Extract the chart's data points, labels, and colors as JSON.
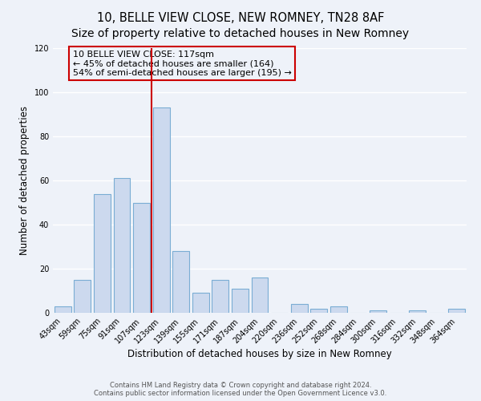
{
  "title": "10, BELLE VIEW CLOSE, NEW ROMNEY, TN28 8AF",
  "subtitle": "Size of property relative to detached houses in New Romney",
  "xlabel": "Distribution of detached houses by size in New Romney",
  "ylabel": "Number of detached properties",
  "bin_labels": [
    "43sqm",
    "59sqm",
    "75sqm",
    "91sqm",
    "107sqm",
    "123sqm",
    "139sqm",
    "155sqm",
    "171sqm",
    "187sqm",
    "204sqm",
    "220sqm",
    "236sqm",
    "252sqm",
    "268sqm",
    "284sqm",
    "300sqm",
    "316sqm",
    "332sqm",
    "348sqm",
    "364sqm"
  ],
  "bar_heights": [
    3,
    15,
    54,
    61,
    50,
    93,
    28,
    9,
    15,
    11,
    16,
    0,
    4,
    2,
    3,
    0,
    1,
    0,
    1,
    0,
    2
  ],
  "bar_color": "#ccd9ee",
  "bar_edge_color": "#7aadd4",
  "vline_x_index": 5,
  "vline_color": "#cc0000",
  "ylim": [
    0,
    120
  ],
  "yticks": [
    0,
    20,
    40,
    60,
    80,
    100,
    120
  ],
  "annotation_text": "10 BELLE VIEW CLOSE: 117sqm\n← 45% of detached houses are smaller (164)\n54% of semi-detached houses are larger (195) →",
  "annotation_box_edge": "#cc0000",
  "footer_text": "Contains HM Land Registry data © Crown copyright and database right 2024.\nContains public sector information licensed under the Open Government Licence v3.0.",
  "background_color": "#eef2f9",
  "grid_color": "#ffffff",
  "title_fontsize": 10.5,
  "xlabel_fontsize": 8.5,
  "ylabel_fontsize": 8.5,
  "tick_fontsize": 7,
  "annotation_fontsize": 8,
  "footer_fontsize": 6
}
